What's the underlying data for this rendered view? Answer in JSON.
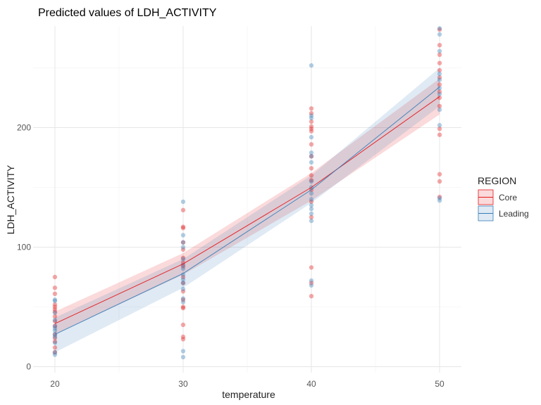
{
  "chart_data": {
    "type": "scatter",
    "title": "Predicted values of LDH_ACTIVITY",
    "xlabel": "temperature",
    "ylabel": "LDH_ACTIVITY",
    "xlim": [
      18.3,
      51.7
    ],
    "ylim": [
      -5,
      285
    ],
    "x_ticks": [
      20,
      30,
      40,
      50
    ],
    "y_ticks": [
      0,
      100,
      200
    ],
    "grid": true,
    "legend": {
      "title": "REGION",
      "placement": "right"
    },
    "series": [
      {
        "name": "Core",
        "color": "#e41a1c",
        "fit": {
          "x": [
            20,
            30,
            40,
            50
          ],
          "y": [
            36,
            86,
            150,
            226
          ],
          "lower": [
            27,
            77,
            139,
            211
          ],
          "upper": [
            46,
            95,
            162,
            241
          ]
        },
        "points": [
          [
            20,
            75
          ],
          [
            20,
            66
          ],
          [
            20,
            61
          ],
          [
            20,
            52
          ],
          [
            20,
            50
          ],
          [
            20,
            48
          ],
          [
            20,
            46
          ],
          [
            20,
            42
          ],
          [
            20,
            38
          ],
          [
            20,
            34
          ],
          [
            20,
            27
          ],
          [
            20,
            24
          ],
          [
            20,
            21
          ],
          [
            20,
            16
          ],
          [
            20,
            12
          ],
          [
            30,
            131
          ],
          [
            30,
            117
          ],
          [
            30,
            116
          ],
          [
            30,
            104
          ],
          [
            30,
            98
          ],
          [
            30,
            91
          ],
          [
            30,
            87
          ],
          [
            30,
            84
          ],
          [
            30,
            75
          ],
          [
            30,
            70
          ],
          [
            30,
            63
          ],
          [
            30,
            56
          ],
          [
            30,
            50
          ],
          [
            30,
            49
          ],
          [
            30,
            35
          ],
          [
            30,
            25
          ],
          [
            30,
            23
          ],
          [
            40,
            216
          ],
          [
            40,
            212
          ],
          [
            40,
            205
          ],
          [
            40,
            201
          ],
          [
            40,
            199
          ],
          [
            40,
            197
          ],
          [
            40,
            186
          ],
          [
            40,
            176
          ],
          [
            40,
            166
          ],
          [
            40,
            160
          ],
          [
            40,
            156
          ],
          [
            40,
            148
          ],
          [
            40,
            138
          ],
          [
            40,
            125
          ],
          [
            40,
            83
          ],
          [
            40,
            70
          ],
          [
            40,
            59
          ],
          [
            50,
            282
          ],
          [
            50,
            269
          ],
          [
            50,
            261
          ],
          [
            50,
            254
          ],
          [
            50,
            248
          ],
          [
            50,
            242
          ],
          [
            50,
            236
          ],
          [
            50,
            230
          ],
          [
            50,
            225
          ],
          [
            50,
            218
          ],
          [
            50,
            199
          ],
          [
            50,
            194
          ],
          [
            50,
            161
          ],
          [
            50,
            155
          ],
          [
            50,
            142
          ]
        ]
      },
      {
        "name": "Leading",
        "color": "#377eb8",
        "fit": {
          "x": [
            20,
            30,
            40,
            50
          ],
          "y": [
            27,
            78,
            148,
            234
          ],
          "lower": [
            12,
            66,
            137,
            218
          ],
          "upper": [
            41,
            90,
            160,
            250
          ]
        },
        "points": [
          [
            20,
            56
          ],
          [
            20,
            55
          ],
          [
            20,
            45
          ],
          [
            20,
            39
          ],
          [
            20,
            34
          ],
          [
            20,
            32
          ],
          [
            20,
            30
          ],
          [
            20,
            27
          ],
          [
            20,
            25
          ],
          [
            20,
            20
          ],
          [
            20,
            12
          ],
          [
            20,
            10
          ],
          [
            30,
            138
          ],
          [
            30,
            110
          ],
          [
            30,
            104
          ],
          [
            30,
            100
          ],
          [
            30,
            90
          ],
          [
            30,
            85
          ],
          [
            30,
            82
          ],
          [
            30,
            77
          ],
          [
            30,
            73
          ],
          [
            30,
            70
          ],
          [
            30,
            65
          ],
          [
            30,
            57
          ],
          [
            30,
            54
          ],
          [
            30,
            13
          ],
          [
            30,
            8
          ],
          [
            40,
            252
          ],
          [
            40,
            210
          ],
          [
            40,
            208
          ],
          [
            40,
            192
          ],
          [
            40,
            179
          ],
          [
            40,
            176
          ],
          [
            40,
            171
          ],
          [
            40,
            155
          ],
          [
            40,
            150
          ],
          [
            40,
            145
          ],
          [
            40,
            140
          ],
          [
            40,
            135
          ],
          [
            40,
            132
          ],
          [
            40,
            128
          ],
          [
            40,
            122
          ],
          [
            40,
            72
          ],
          [
            40,
            68
          ],
          [
            50,
            283
          ],
          [
            50,
            278
          ],
          [
            50,
            264
          ],
          [
            50,
            245
          ],
          [
            50,
            240
          ],
          [
            50,
            233
          ],
          [
            50,
            228
          ],
          [
            50,
            215
          ],
          [
            50,
            202
          ],
          [
            50,
            141
          ],
          [
            50,
            139
          ]
        ]
      }
    ]
  }
}
